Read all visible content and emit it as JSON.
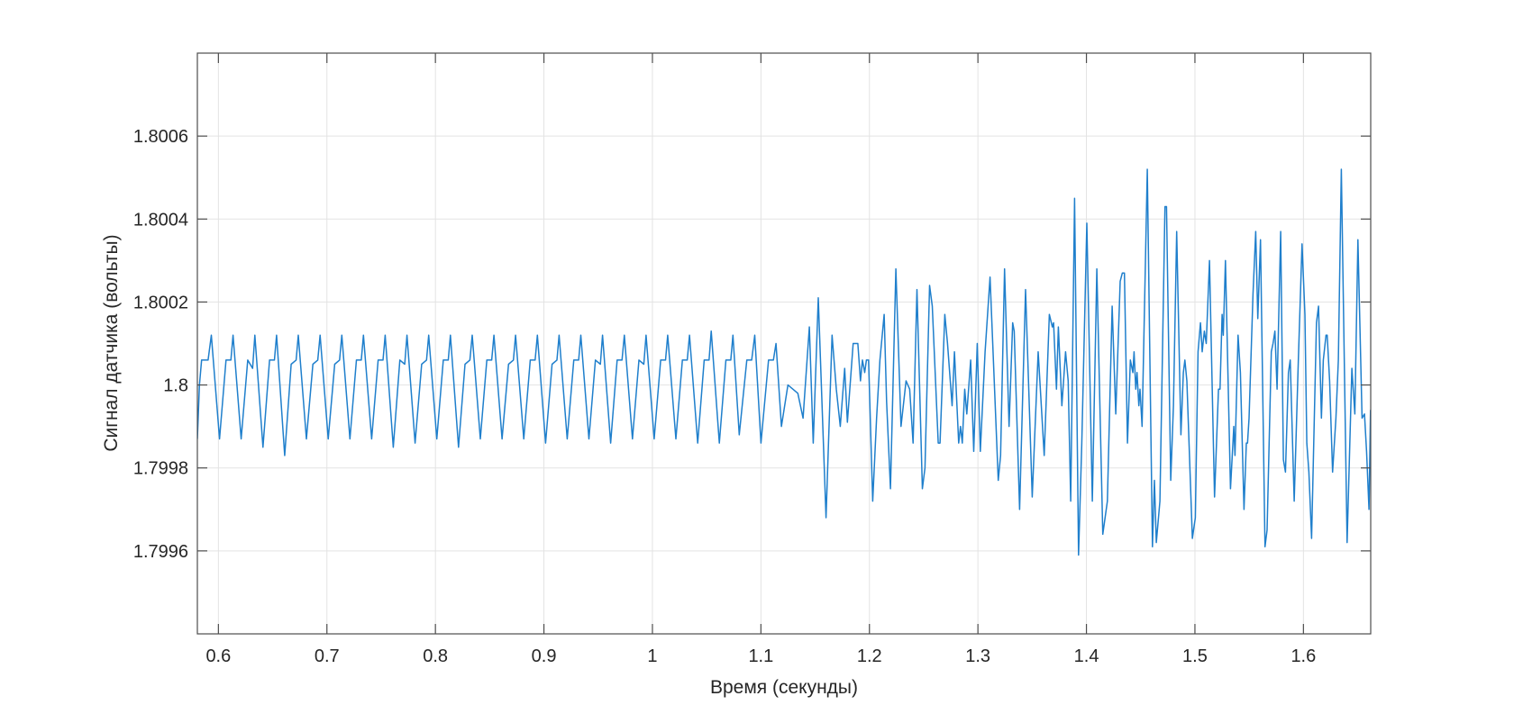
{
  "chart_data": {
    "type": "line",
    "title": "",
    "xlabel": "Время (секунды)",
    "ylabel": "Сигнал датчика (вольты)",
    "xlim": [
      0.5806,
      1.662
    ],
    "ylim": [
      1.7994,
      1.8008
    ],
    "grid": true,
    "box": true,
    "x_ticks": [
      0.6,
      0.7,
      0.8,
      0.9,
      1.0,
      1.1,
      1.2,
      1.3,
      1.4,
      1.5,
      1.6
    ],
    "x_tick_labels": [
      "0.6",
      "0.7",
      "0.8",
      "0.9",
      "1",
      "1.1",
      "1.2",
      "1.3",
      "1.4",
      "1.5",
      "1.6"
    ],
    "y_ticks": [
      1.7996,
      1.7998,
      1.8,
      1.8002,
      1.8004,
      1.8006
    ],
    "y_tick_labels": [
      "1.7996",
      "1.7998",
      "1.8",
      "1.8002",
      "1.8004",
      "1.8006"
    ],
    "colors": {
      "line": "#1f7fcc",
      "grid": "#e3e3e3",
      "axis": "#4d4d4d"
    },
    "series": [
      {
        "points": [
          [
            0.5806,
            1.79987
          ],
          [
            0.5825,
            1.8
          ],
          [
            0.5845,
            1.80006
          ],
          [
            0.5905,
            1.80006
          ],
          [
            0.5935,
            1.80012
          ],
          [
            0.601,
            1.79987
          ],
          [
            0.607,
            1.80006
          ],
          [
            0.6115,
            1.80006
          ],
          [
            0.6135,
            1.80012
          ],
          [
            0.621,
            1.79987
          ],
          [
            0.627,
            1.80006
          ],
          [
            0.6315,
            1.80004
          ],
          [
            0.6336,
            1.80012
          ],
          [
            0.6411,
            1.79985
          ],
          [
            0.6471,
            1.80006
          ],
          [
            0.6516,
            1.80006
          ],
          [
            0.6536,
            1.80012
          ],
          [
            0.6611,
            1.79983
          ],
          [
            0.6671,
            1.80005
          ],
          [
            0.6716,
            1.80006
          ],
          [
            0.6736,
            1.80012
          ],
          [
            0.6811,
            1.79987
          ],
          [
            0.6871,
            1.80005
          ],
          [
            0.6916,
            1.80006
          ],
          [
            0.6937,
            1.80012
          ],
          [
            0.7012,
            1.79987
          ],
          [
            0.7072,
            1.80005
          ],
          [
            0.7117,
            1.80006
          ],
          [
            0.7137,
            1.80012
          ],
          [
            0.7212,
            1.79987
          ],
          [
            0.7272,
            1.80006
          ],
          [
            0.7317,
            1.80006
          ],
          [
            0.7337,
            1.80012
          ],
          [
            0.7412,
            1.79987
          ],
          [
            0.7472,
            1.80006
          ],
          [
            0.7517,
            1.80006
          ],
          [
            0.7537,
            1.80012
          ],
          [
            0.7612,
            1.79985
          ],
          [
            0.7672,
            1.80006
          ],
          [
            0.7717,
            1.80005
          ],
          [
            0.7738,
            1.80012
          ],
          [
            0.7813,
            1.79986
          ],
          [
            0.7873,
            1.80005
          ],
          [
            0.7918,
            1.80006
          ],
          [
            0.7938,
            1.80012
          ],
          [
            0.8013,
            1.79987
          ],
          [
            0.8073,
            1.80006
          ],
          [
            0.8118,
            1.80006
          ],
          [
            0.8138,
            1.80012
          ],
          [
            0.8213,
            1.79985
          ],
          [
            0.8273,
            1.80005
          ],
          [
            0.8318,
            1.80006
          ],
          [
            0.8339,
            1.80012
          ],
          [
            0.8414,
            1.79987
          ],
          [
            0.8474,
            1.80006
          ],
          [
            0.8519,
            1.80006
          ],
          [
            0.8539,
            1.80012
          ],
          [
            0.8614,
            1.79987
          ],
          [
            0.8674,
            1.80005
          ],
          [
            0.8719,
            1.80006
          ],
          [
            0.8739,
            1.80012
          ],
          [
            0.8814,
            1.79987
          ],
          [
            0.8874,
            1.80006
          ],
          [
            0.8919,
            1.80006
          ],
          [
            0.894,
            1.80012
          ],
          [
            0.9015,
            1.79986
          ],
          [
            0.9075,
            1.80005
          ],
          [
            0.912,
            1.80006
          ],
          [
            0.914,
            1.80012
          ],
          [
            0.9215,
            1.79987
          ],
          [
            0.9275,
            1.80006
          ],
          [
            0.932,
            1.80006
          ],
          [
            0.934,
            1.80012
          ],
          [
            0.9415,
            1.79987
          ],
          [
            0.9475,
            1.80006
          ],
          [
            0.952,
            1.80005
          ],
          [
            0.954,
            1.80012
          ],
          [
            0.9615,
            1.79986
          ],
          [
            0.9675,
            1.80006
          ],
          [
            0.972,
            1.80006
          ],
          [
            0.9741,
            1.80012
          ],
          [
            0.9816,
            1.79987
          ],
          [
            0.9876,
            1.80006
          ],
          [
            0.9921,
            1.80005
          ],
          [
            0.9941,
            1.80012
          ],
          [
            1.0016,
            1.79987
          ],
          [
            1.0076,
            1.80006
          ],
          [
            1.0121,
            1.80006
          ],
          [
            1.0141,
            1.80012
          ],
          [
            1.0216,
            1.79987
          ],
          [
            1.0276,
            1.80006
          ],
          [
            1.0321,
            1.80006
          ],
          [
            1.0342,
            1.80012
          ],
          [
            1.0417,
            1.79986
          ],
          [
            1.0477,
            1.80006
          ],
          [
            1.0522,
            1.80006
          ],
          [
            1.0542,
            1.80013
          ],
          [
            1.0617,
            1.79986
          ],
          [
            1.0677,
            1.80006
          ],
          [
            1.0722,
            1.80006
          ],
          [
            1.0742,
            1.80012
          ],
          [
            1.08,
            1.79988
          ],
          [
            1.087,
            1.80006
          ],
          [
            1.0915,
            1.80006
          ],
          [
            1.0943,
            1.80012
          ],
          [
            1.1,
            1.79986
          ],
          [
            1.107,
            1.80006
          ],
          [
            1.1115,
            1.80006
          ],
          [
            1.1139,
            1.8001
          ],
          [
            1.1189,
            1.7999
          ],
          [
            1.1249,
            1.8
          ],
          [
            1.134,
            1.79998
          ],
          [
            1.1388,
            1.79992
          ],
          [
            1.1446,
            1.80014
          ],
          [
            1.1482,
            1.79986
          ],
          [
            1.1529,
            1.80021
          ],
          [
            1.16,
            1.79968
          ],
          [
            1.1656,
            1.80012
          ],
          [
            1.1695,
            1.79999
          ],
          [
            1.1731,
            1.7999
          ],
          [
            1.1772,
            1.80004
          ],
          [
            1.1797,
            1.79991
          ],
          [
            1.185,
            1.8001
          ],
          [
            1.1893,
            1.8001
          ],
          [
            1.1917,
            1.80001
          ],
          [
            1.1936,
            1.80006
          ],
          [
            1.1956,
            1.80003
          ],
          [
            1.1972,
            1.80006
          ],
          [
            1.1992,
            1.80006
          ],
          [
            1.203,
            1.79972
          ],
          [
            1.2066,
            1.79992
          ],
          [
            1.2097,
            1.80006
          ],
          [
            1.2136,
            1.80017
          ],
          [
            1.2158,
            1.79996
          ],
          [
            1.2194,
            1.79975
          ],
          [
            1.2244,
            1.80028
          ],
          [
            1.2291,
            1.7999
          ],
          [
            1.2338,
            1.80001
          ],
          [
            1.2371,
            1.79999
          ],
          [
            1.2402,
            1.79986
          ],
          [
            1.2438,
            1.80023
          ],
          [
            1.2488,
            1.79975
          ],
          [
            1.2512,
            1.7998
          ],
          [
            1.2554,
            1.80024
          ],
          [
            1.2579,
            1.80019
          ],
          [
            1.2634,
            1.79986
          ],
          [
            1.2651,
            1.79986
          ],
          [
            1.2695,
            1.80017
          ],
          [
            1.272,
            1.8001
          ],
          [
            1.2762,
            1.79995
          ],
          [
            1.2784,
            1.80008
          ],
          [
            1.2823,
            1.79986
          ],
          [
            1.2839,
            1.7999
          ],
          [
            1.2856,
            1.79986
          ],
          [
            1.2878,
            1.79999
          ],
          [
            1.2897,
            1.79993
          ],
          [
            1.2933,
            1.80006
          ],
          [
            1.2961,
            1.79984
          ],
          [
            1.2994,
            1.8001
          ],
          [
            1.3022,
            1.79984
          ],
          [
            1.3066,
            1.80008
          ],
          [
            1.3112,
            1.80026
          ],
          [
            1.3187,
            1.79977
          ],
          [
            1.3209,
            1.79983
          ],
          [
            1.3245,
            1.80028
          ],
          [
            1.3287,
            1.7999
          ],
          [
            1.332,
            1.80015
          ],
          [
            1.3334,
            1.80013
          ],
          [
            1.3384,
            1.7997
          ],
          [
            1.3439,
            1.80023
          ],
          [
            1.35,
            1.79973
          ],
          [
            1.3555,
            1.80008
          ],
          [
            1.3611,
            1.79983
          ],
          [
            1.3658,
            1.80017
          ],
          [
            1.3686,
            1.80014
          ],
          [
            1.3697,
            1.80015
          ],
          [
            1.3724,
            1.79999
          ],
          [
            1.3741,
            1.80014
          ],
          [
            1.3774,
            1.79995
          ],
          [
            1.3808,
            1.80008
          ],
          [
            1.3832,
            1.80001
          ],
          [
            1.3855,
            1.79972
          ],
          [
            1.3891,
            1.80045
          ],
          [
            1.3927,
            1.79959
          ],
          [
            1.3957,
            1.79986
          ],
          [
            1.4004,
            1.80039
          ],
          [
            1.4054,
            1.79972
          ],
          [
            1.4096,
            1.80028
          ],
          [
            1.4151,
            1.79964
          ],
          [
            1.4193,
            1.79972
          ],
          [
            1.4237,
            1.80019
          ],
          [
            1.427,
            1.79993
          ],
          [
            1.4311,
            1.80025
          ],
          [
            1.4331,
            1.80027
          ],
          [
            1.435,
            1.80027
          ],
          [
            1.4378,
            1.79986
          ],
          [
            1.4405,
            1.80006
          ],
          [
            1.4428,
            1.80003
          ],
          [
            1.4439,
            1.80008
          ],
          [
            1.4455,
            1.79999
          ],
          [
            1.4466,
            1.80003
          ],
          [
            1.4483,
            1.79995
          ],
          [
            1.4494,
            1.79999
          ],
          [
            1.4513,
            1.7999
          ],
          [
            1.4561,
            1.80052
          ],
          [
            1.4608,
            1.79961
          ],
          [
            1.4627,
            1.79977
          ],
          [
            1.4644,
            1.79962
          ],
          [
            1.4677,
            1.79972
          ],
          [
            1.4724,
            1.80043
          ],
          [
            1.4738,
            1.80043
          ],
          [
            1.4777,
            1.79977
          ],
          [
            1.4802,
            1.79995
          ],
          [
            1.4832,
            1.80037
          ],
          [
            1.4871,
            1.79988
          ],
          [
            1.4893,
            1.80003
          ],
          [
            1.4907,
            1.80006
          ],
          [
            1.4926,
            1.80001
          ],
          [
            1.4976,
            1.79963
          ],
          [
            1.5004,
            1.79968
          ],
          [
            1.5029,
            1.80008
          ],
          [
            1.5051,
            1.80015
          ],
          [
            1.5067,
            1.80008
          ],
          [
            1.5087,
            1.80013
          ],
          [
            1.5104,
            1.8001
          ],
          [
            1.5134,
            1.8003
          ],
          [
            1.5181,
            1.79973
          ],
          [
            1.5217,
            1.79999
          ],
          [
            1.5231,
            1.79999
          ],
          [
            1.525,
            1.80017
          ],
          [
            1.5261,
            1.80012
          ],
          [
            1.5281,
            1.8003
          ],
          [
            1.5328,
            1.79975
          ],
          [
            1.5358,
            1.7999
          ],
          [
            1.5369,
            1.79983
          ],
          [
            1.5397,
            1.80012
          ],
          [
            1.5419,
            1.80003
          ],
          [
            1.5452,
            1.7997
          ],
          [
            1.5474,
            1.79986
          ],
          [
            1.5485,
            1.79986
          ],
          [
            1.5499,
            1.79992
          ],
          [
            1.5535,
            1.80022
          ],
          [
            1.556,
            1.80037
          ],
          [
            1.5579,
            1.80016
          ],
          [
            1.5604,
            1.80035
          ],
          [
            1.5646,
            1.79961
          ],
          [
            1.5665,
            1.79965
          ],
          [
            1.5704,
            1.80008
          ],
          [
            1.572,
            1.8001
          ],
          [
            1.5737,
            1.80013
          ],
          [
            1.5757,
            1.79999
          ],
          [
            1.579,
            1.80037
          ],
          [
            1.5815,
            1.79982
          ],
          [
            1.5834,
            1.79979
          ],
          [
            1.5862,
            1.80003
          ],
          [
            1.5878,
            1.80006
          ],
          [
            1.5915,
            1.79972
          ],
          [
            1.5953,
            1.80006
          ],
          [
            1.5987,
            1.80034
          ],
          [
            1.6014,
            1.80017
          ],
          [
            1.6031,
            1.79986
          ],
          [
            1.605,
            1.79979
          ],
          [
            1.6075,
            1.79963
          ],
          [
            1.612,
            1.80015
          ],
          [
            1.6139,
            1.80019
          ],
          [
            1.6166,
            1.79992
          ],
          [
            1.6183,
            1.80006
          ],
          [
            1.6208,
            1.80012
          ],
          [
            1.6219,
            1.80012
          ],
          [
            1.6241,
            1.80001
          ],
          [
            1.6269,
            1.79979
          ],
          [
            1.6299,
            1.79992
          ],
          [
            1.6322,
            1.80006
          ],
          [
            1.6349,
            1.80052
          ],
          [
            1.6402,
            1.79962
          ],
          [
            1.6446,
            1.80004
          ],
          [
            1.6474,
            1.79993
          ],
          [
            1.6502,
            1.80035
          ],
          [
            1.654,
            1.79992
          ],
          [
            1.6563,
            1.79993
          ],
          [
            1.6582,
            1.79984
          ],
          [
            1.6604,
            1.7997
          ],
          [
            1.6618,
            1.79994
          ]
        ]
      }
    ]
  }
}
